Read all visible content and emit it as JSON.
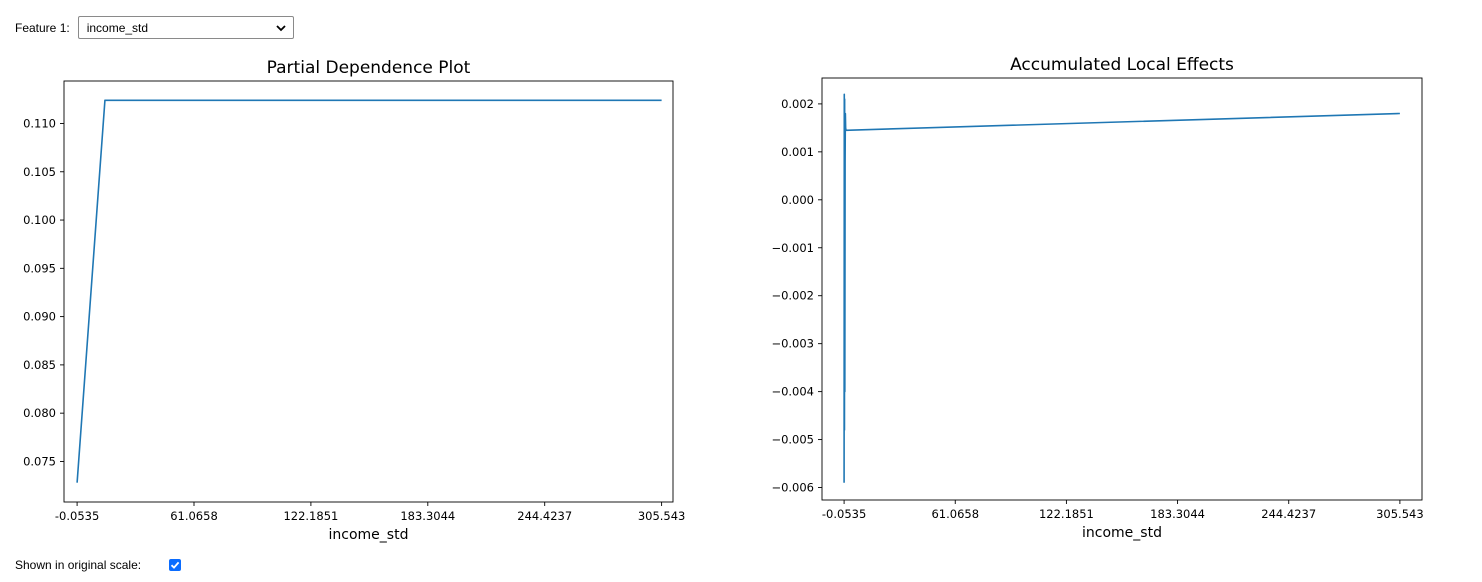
{
  "controls": {
    "feature_label": "Feature 1:",
    "feature_value": "income_std",
    "scale_label": "Shown in original scale:",
    "scale_checked": true
  },
  "colors": {
    "line": "#1f77b4",
    "checkbox": "#0a6cff"
  },
  "chart_data": [
    {
      "type": "line",
      "title": "Partial Dependence Plot",
      "xlabel": "income_std",
      "ylabel": "",
      "xticks": [
        "-0.0535",
        "61.0658",
        "122.1851",
        "183.3044",
        "244.4237",
        "305.543"
      ],
      "xtick_values": [
        -0.0535,
        61.0658,
        122.1851,
        183.3044,
        244.4237,
        305.543
      ],
      "yticks": [
        "0.075",
        "0.080",
        "0.085",
        "0.090",
        "0.095",
        "0.100",
        "0.105",
        "0.110"
      ],
      "ytick_values": [
        0.075,
        0.08,
        0.085,
        0.09,
        0.095,
        0.1,
        0.105,
        0.11
      ],
      "xlim": [
        -6.9,
        311.5
      ],
      "ylim": [
        0.0708,
        0.1144
      ],
      "x": [
        -0.0535,
        14.5,
        305.543
      ],
      "y": [
        0.0728,
        0.1124,
        0.1124
      ],
      "grid": false
    },
    {
      "type": "line",
      "title": "Accumulated Local Effects",
      "xlabel": "income_std",
      "ylabel": "",
      "xticks": [
        "-0.0535",
        "61.0658",
        "122.1851",
        "183.3044",
        "244.4237",
        "305.543"
      ],
      "xtick_values": [
        -0.0535,
        61.0658,
        122.1851,
        183.3044,
        244.4237,
        305.543
      ],
      "yticks": [
        "0.002",
        "0.001",
        "0.000",
        "−0.001",
        "−0.002",
        "−0.003",
        "−0.004",
        "−0.005",
        "−0.006"
      ],
      "ytick_values": [
        0.002,
        0.001,
        0.0,
        -0.001,
        -0.002,
        -0.003,
        -0.004,
        -0.005,
        -0.006
      ],
      "xlim": [
        -12.2,
        317.7
      ],
      "ylim": [
        -0.00626,
        0.00254
      ],
      "x": [
        -0.0535,
        0.05,
        0.15,
        0.25,
        0.35,
        0.5,
        0.65,
        0.8,
        1.0,
        305.543
      ],
      "y": [
        -0.0059,
        0.0022,
        -0.0048,
        0.0021,
        -0.004,
        0.0008,
        0.0018,
        0.0015,
        0.00145,
        0.0018
      ],
      "grid": false
    }
  ]
}
